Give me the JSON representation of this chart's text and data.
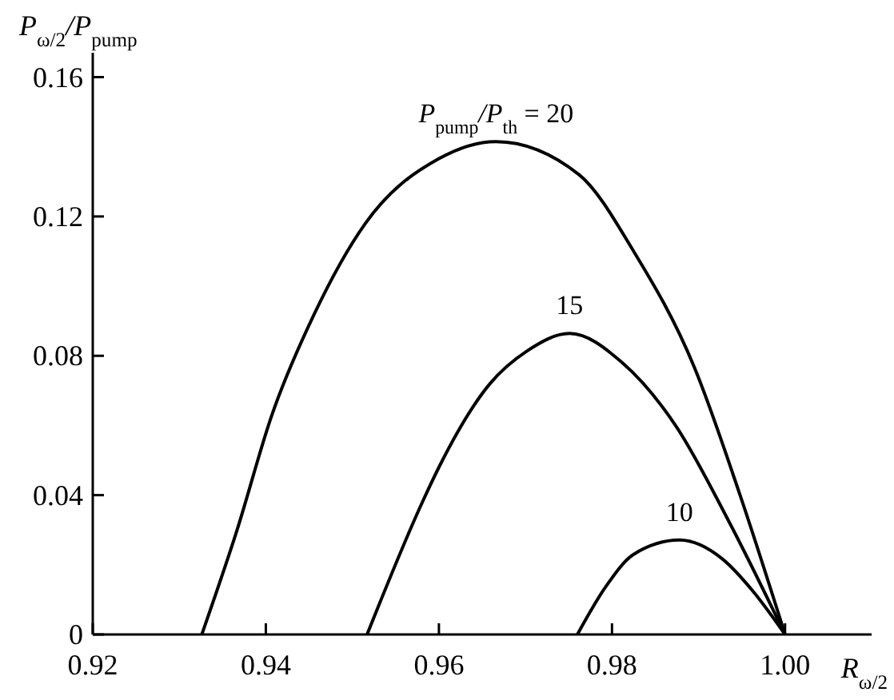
{
  "chart_data": {
    "type": "line",
    "xlabel": "R$_{ω/2}$",
    "ylabel": "P$_{ω/2}$/P$_{pump}$",
    "xlim": [
      0.92,
      1.01
    ],
    "xticks": [
      0.92,
      0.94,
      0.96,
      0.98,
      {
        "value": 1,
        "label": "1.00"
      }
    ],
    "ylim": [
      0,
      0.167
    ],
    "yticks": [
      0,
      0.04,
      0.08,
      0.12,
      0.16
    ],
    "grid": false,
    "marker": "none",
    "line_style": "solid",
    "series": [
      {
        "name": "P$_{pump}$/P$_{th}$ = 20",
        "color": "#000000",
        "x": [
          0.9326,
          0.9366,
          0.9407,
          0.9456,
          0.9515,
          0.96,
          0.9666,
          0.9762,
          0.9825,
          0.9895,
          0.9948,
          1.0
        ],
        "values": [
          0,
          0.0294,
          0.063,
          0.092,
          0.118,
          0.1366,
          0.1415,
          0.132,
          0.11,
          0.0768,
          0.04,
          0
        ]
      },
      {
        "name": "15",
        "color": "#000000",
        "x": [
          0.9517,
          0.9582,
          0.96,
          0.9659,
          0.9702,
          0.9751,
          0.9812,
          0.9874,
          0.9936,
          1.0
        ],
        "values": [
          0,
          0.0386,
          0.048,
          0.072,
          0.0814,
          0.0864,
          0.078,
          0.0598,
          0.032,
          0
        ]
      },
      {
        "name": "10",
        "color": "#000000",
        "x": [
          0.976,
          0.9793,
          0.9825,
          0.9878,
          0.9928,
          0.9963,
          1.0
        ],
        "values": [
          0,
          0.0138,
          0.023,
          0.0271,
          0.0216,
          0.0124,
          0
        ]
      }
    ]
  }
}
